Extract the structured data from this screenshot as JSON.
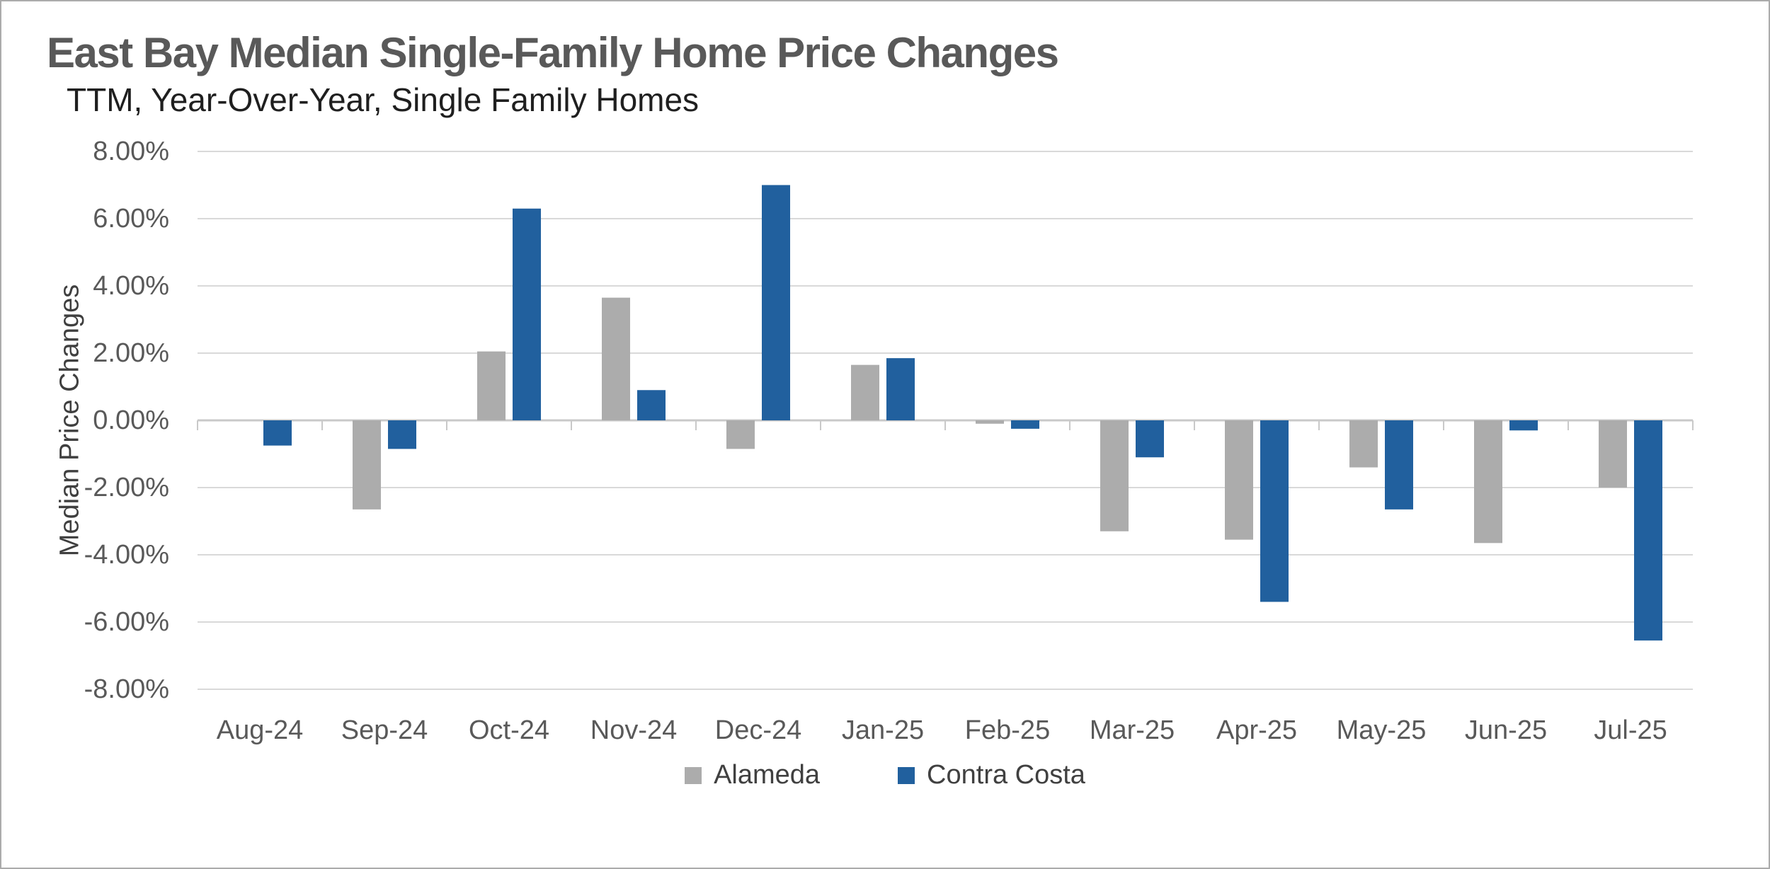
{
  "page": {
    "background_color": "#FFFFFF",
    "border_color": "#ABABAB"
  },
  "header": {
    "title": "East Bay Median Single-Family Home Price Changes",
    "subtitle": "TTM, Year-Over-Year, Single Family Homes"
  },
  "chart_data": {
    "type": "bar",
    "title": "East Bay Median Single-Family Home Price Changes",
    "subtitle": "TTM, Year-Over-Year, Single Family Homes",
    "xlabel": "",
    "ylabel": "Median Price Changes",
    "categories": [
      "Aug-24",
      "Sep-24",
      "Oct-24",
      "Nov-24",
      "Dec-24",
      "Jan-25",
      "Feb-25",
      "Mar-25",
      "Apr-25",
      "May-25",
      "Jun-25",
      "Jul-25"
    ],
    "series": [
      {
        "name": "Alameda",
        "color": "#ACACAC",
        "values": [
          0.0,
          -2.65,
          2.05,
          3.65,
          -0.85,
          1.65,
          -0.1,
          -3.3,
          -3.55,
          -1.4,
          -3.65,
          -2.0
        ]
      },
      {
        "name": "Contra Costa",
        "color": "#21609E",
        "values": [
          -0.75,
          -0.85,
          6.3,
          0.9,
          7.0,
          1.85,
          -0.25,
          -1.1,
          -5.4,
          -2.65,
          -0.3,
          -6.55
        ]
      }
    ],
    "y_axis": {
      "min": -8,
      "max": 8,
      "step": 2,
      "unit": "percent",
      "tick_labels": [
        "8.00%",
        "6.00%",
        "4.00%",
        "2.00%",
        "0.00%",
        "-2.00%",
        "-4.00%",
        "-6.00%",
        "-8.00%"
      ]
    },
    "grid": true,
    "gridline_color": "#D9D9D9",
    "axis_line_color": "#C9C9C9",
    "tick_text_color": "#595959",
    "legend_position": "bottom"
  }
}
